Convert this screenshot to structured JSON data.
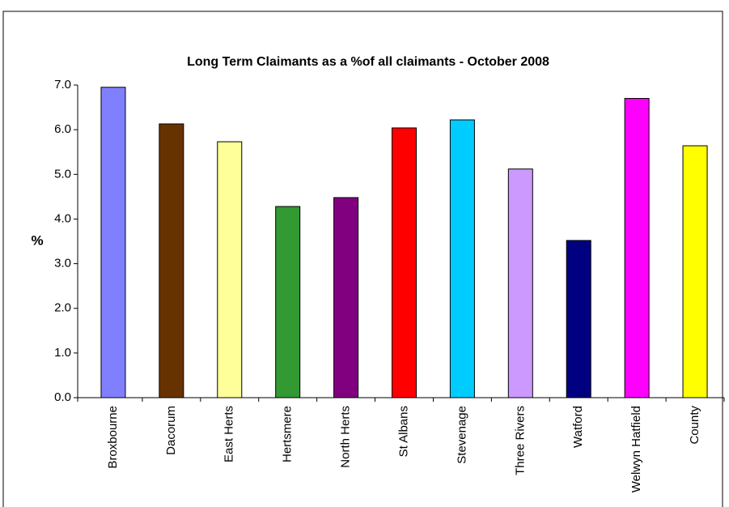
{
  "chart_data": {
    "type": "bar",
    "title": "Long Term Claimants as a %of all claimants - October 2008",
    "y_label": "%",
    "categories": [
      "Broxbourne",
      "Dacorum",
      "East Herts",
      "Hertsmere",
      "North Herts",
      "St Albans",
      "Stevenage",
      "Three Rivers",
      "Watford",
      "Welwyn Hatfield",
      "County"
    ],
    "values": [
      6.95,
      6.13,
      5.73,
      4.28,
      4.48,
      6.04,
      6.22,
      5.12,
      3.52,
      6.7,
      5.64
    ],
    "colors": [
      "#8080ff",
      "#663300",
      "#ffff99",
      "#339933",
      "#800080",
      "#ff0000",
      "#00ccff",
      "#cc99ff",
      "#000080",
      "#ff00ff",
      "#ffff00"
    ],
    "ylim": [
      0,
      7
    ],
    "yticks": [
      {
        "value": 0,
        "label": "0.0"
      },
      {
        "value": 1,
        "label": "1.0"
      },
      {
        "value": 2,
        "label": "2.0"
      },
      {
        "value": 3,
        "label": "3.0"
      },
      {
        "value": 4,
        "label": "4.0"
      },
      {
        "value": 5,
        "label": "5.0"
      },
      {
        "value": 6,
        "label": "6.0"
      },
      {
        "value": 7,
        "label": "7.0"
      }
    ],
    "grid": false
  }
}
